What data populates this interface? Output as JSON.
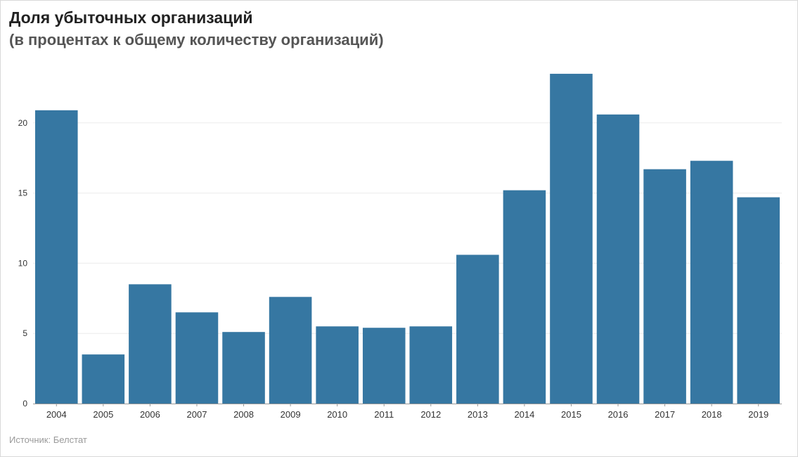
{
  "chart_data": {
    "type": "bar",
    "title": "Доля убыточных организаций",
    "subtitle": "(в процентах к общему количеству организаций)",
    "source": "Источник: Белстат",
    "xlabel": "",
    "ylabel": "",
    "ylim": [
      0,
      25
    ],
    "yticks": [
      0,
      5,
      10,
      15,
      20
    ],
    "grid": true,
    "legend": "none",
    "categories": [
      "2004",
      "2005",
      "2006",
      "2007",
      "2008",
      "2009",
      "2010",
      "2011",
      "2012",
      "2013",
      "2014",
      "2015",
      "2016",
      "2017",
      "2018",
      "2019"
    ],
    "values": [
      20.9,
      3.5,
      8.5,
      6.5,
      5.1,
      7.6,
      5.5,
      5.4,
      5.5,
      10.6,
      15.2,
      23.5,
      20.6,
      16.7,
      17.3,
      14.7
    ],
    "bar_color": "#3677a2",
    "grid_color": "#ececec",
    "axis_color": "#999999"
  }
}
